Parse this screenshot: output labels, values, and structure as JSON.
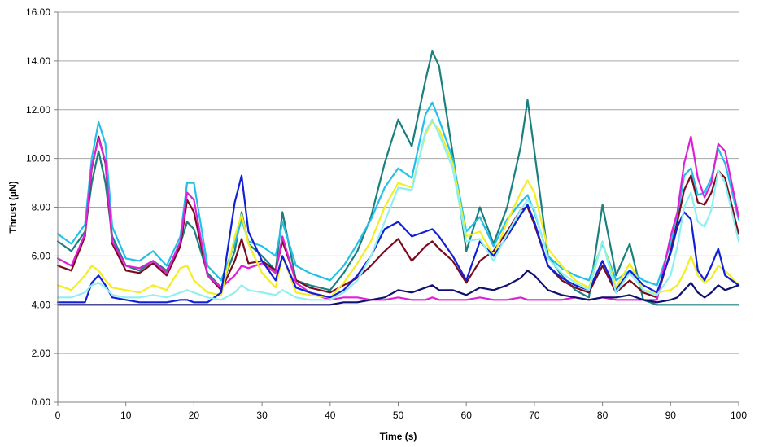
{
  "chart_data": {
    "type": "line",
    "title": "",
    "xlabel": "Time (s)",
    "ylabel": "Thrust (µN)",
    "xlim": [
      0,
      100
    ],
    "ylim": [
      0,
      16
    ],
    "x_ticks": [
      "0",
      "10",
      "20",
      "30",
      "40",
      "50",
      "60",
      "70",
      "80",
      "90",
      "100"
    ],
    "y_ticks": [
      "0.00",
      "2.00",
      "4.00",
      "6.00",
      "8.00",
      "10.00",
      "12.00",
      "14.00",
      "16.00"
    ],
    "grid": "horizontal",
    "x": [
      0,
      2,
      4,
      5,
      6,
      7,
      8,
      10,
      12,
      14,
      16,
      18,
      19,
      20,
      22,
      24,
      26,
      27,
      28,
      30,
      32,
      33,
      35,
      37,
      40,
      42,
      44,
      46,
      48,
      50,
      52,
      54,
      55,
      56,
      58,
      60,
      62,
      64,
      66,
      68,
      69,
      70,
      72,
      74,
      76,
      78,
      80,
      82,
      84,
      86,
      88,
      90,
      91,
      92,
      93,
      94,
      95,
      96,
      97,
      98,
      100
    ],
    "series": [
      {
        "name": "teal",
        "color": "#1a7f7f",
        "values": [
          6.6,
          6.2,
          7.0,
          9.0,
          10.3,
          9.0,
          6.8,
          5.6,
          5.4,
          5.8,
          5.4,
          6.5,
          7.4,
          7.1,
          5.3,
          4.7,
          6.2,
          7.8,
          6.5,
          6.0,
          5.4,
          7.8,
          5.0,
          4.8,
          4.6,
          5.3,
          6.2,
          7.6,
          9.8,
          11.6,
          10.5,
          13.2,
          14.4,
          13.8,
          10.2,
          6.2,
          8.0,
          6.5,
          8.0,
          10.5,
          12.4,
          10.3,
          6.0,
          5.2,
          4.6,
          4.3,
          8.1,
          5.2,
          6.5,
          4.2,
          4.0,
          4.0,
          4.0,
          4.0,
          4.0,
          4.0,
          4.0,
          4.0,
          4.0,
          4.0,
          4.0
        ]
      },
      {
        "name": "cyan",
        "color": "#22c0e8",
        "values": [
          6.9,
          6.5,
          7.3,
          10.0,
          11.5,
          10.6,
          7.2,
          5.9,
          5.8,
          6.2,
          5.6,
          6.8,
          9.0,
          9.0,
          5.6,
          5.0,
          6.5,
          7.5,
          6.6,
          6.4,
          6.0,
          7.4,
          5.6,
          5.3,
          5.0,
          5.6,
          6.5,
          7.5,
          8.8,
          9.6,
          9.2,
          11.8,
          12.3,
          11.6,
          10.0,
          7.0,
          7.6,
          6.4,
          7.5,
          8.2,
          8.5,
          7.8,
          6.0,
          5.5,
          5.2,
          5.0,
          6.5,
          5.0,
          5.4,
          5.0,
          4.8,
          6.5,
          7.6,
          9.3,
          9.6,
          8.5,
          8.6,
          9.2,
          10.4,
          9.8,
          7.5
        ]
      },
      {
        "name": "maroon",
        "color": "#7a0a1e",
        "values": [
          5.6,
          5.4,
          6.8,
          9.6,
          10.9,
          9.8,
          6.5,
          5.4,
          5.3,
          5.7,
          5.2,
          6.4,
          8.3,
          7.8,
          5.2,
          4.6,
          5.8,
          6.7,
          5.7,
          5.8,
          5.4,
          6.6,
          5.0,
          4.7,
          4.5,
          4.8,
          5.1,
          5.6,
          6.2,
          6.7,
          5.8,
          6.4,
          6.6,
          6.3,
          5.8,
          4.9,
          5.8,
          6.2,
          7.0,
          7.9,
          8.0,
          7.3,
          5.6,
          5.0,
          4.7,
          4.5,
          5.6,
          4.5,
          5.0,
          4.5,
          4.3,
          6.2,
          7.4,
          8.7,
          9.3,
          8.2,
          8.1,
          8.6,
          9.5,
          9.2,
          6.9
        ]
      },
      {
        "name": "magenta",
        "color": "#e020d8",
        "values": [
          5.9,
          5.6,
          6.9,
          9.7,
          10.8,
          9.9,
          6.6,
          5.6,
          5.5,
          5.8,
          5.3,
          6.6,
          8.6,
          8.3,
          5.2,
          4.7,
          5.2,
          5.6,
          5.5,
          5.7,
          5.3,
          6.8,
          4.9,
          4.5,
          4.2,
          4.3,
          4.3,
          4.2,
          4.2,
          4.3,
          4.2,
          4.2,
          4.3,
          4.2,
          4.2,
          4.2,
          4.3,
          4.2,
          4.2,
          4.3,
          4.2,
          4.2,
          4.2,
          4.2,
          4.3,
          4.2,
          4.3,
          4.2,
          4.2,
          4.2,
          4.2,
          6.8,
          7.8,
          9.8,
          10.9,
          9.2,
          8.4,
          9.0,
          10.6,
          10.3,
          7.6
        ]
      },
      {
        "name": "yellow",
        "color": "#f2ee22",
        "values": [
          4.8,
          4.6,
          5.2,
          5.6,
          5.4,
          5.0,
          4.7,
          4.6,
          4.5,
          4.8,
          4.6,
          5.5,
          5.6,
          5.0,
          4.5,
          4.4,
          6.8,
          7.7,
          6.5,
          5.3,
          4.7,
          6.0,
          4.5,
          4.4,
          4.3,
          4.9,
          5.7,
          6.6,
          8.0,
          9.0,
          8.8,
          11.0,
          11.5,
          11.2,
          9.8,
          6.8,
          7.0,
          6.0,
          7.4,
          8.6,
          9.1,
          8.6,
          6.3,
          5.6,
          5.0,
          4.7,
          6.6,
          4.7,
          5.7,
          4.6,
          4.5,
          4.6,
          4.8,
          5.3,
          6.0,
          5.2,
          4.9,
          5.1,
          5.6,
          5.4,
          4.8
        ]
      },
      {
        "name": "blue",
        "color": "#1020d8",
        "values": [
          4.1,
          4.1,
          4.1,
          4.9,
          5.2,
          4.8,
          4.3,
          4.2,
          4.1,
          4.1,
          4.1,
          4.2,
          4.2,
          4.1,
          4.1,
          4.5,
          8.2,
          9.3,
          7.0,
          5.8,
          5.0,
          6.0,
          4.7,
          4.5,
          4.3,
          4.6,
          5.2,
          6.0,
          7.1,
          7.4,
          6.8,
          7.0,
          7.1,
          6.8,
          6.0,
          5.0,
          6.6,
          6.0,
          6.8,
          7.7,
          8.1,
          7.4,
          5.6,
          5.1,
          4.8,
          4.6,
          5.8,
          4.6,
          5.4,
          4.8,
          4.5,
          6.1,
          7.2,
          7.8,
          7.5,
          5.4,
          5.0,
          5.6,
          6.3,
          5.2,
          4.8
        ]
      },
      {
        "name": "navy",
        "color": "#101070",
        "values": [
          4.0,
          4.0,
          4.0,
          4.0,
          4.0,
          4.0,
          4.0,
          4.0,
          4.0,
          4.0,
          4.0,
          4.0,
          4.0,
          4.0,
          4.0,
          4.0,
          4.0,
          4.0,
          4.0,
          4.0,
          4.0,
          4.0,
          4.0,
          4.0,
          4.0,
          4.1,
          4.1,
          4.2,
          4.3,
          4.6,
          4.5,
          4.7,
          4.8,
          4.6,
          4.6,
          4.4,
          4.7,
          4.6,
          4.8,
          5.1,
          5.4,
          5.2,
          4.6,
          4.4,
          4.3,
          4.2,
          4.3,
          4.3,
          4.4,
          4.2,
          4.1,
          4.2,
          4.3,
          4.6,
          4.9,
          4.5,
          4.3,
          4.5,
          4.8,
          4.6,
          4.8
        ]
      },
      {
        "name": "light-cyan",
        "color": "#8ef0f0",
        "values": [
          4.3,
          4.3,
          4.5,
          4.8,
          4.9,
          4.7,
          4.4,
          4.3,
          4.3,
          4.4,
          4.3,
          4.5,
          4.6,
          4.5,
          4.3,
          4.2,
          4.5,
          4.8,
          4.6,
          4.5,
          4.4,
          4.6,
          4.3,
          4.2,
          4.2,
          4.5,
          5.0,
          6.0,
          7.4,
          8.8,
          8.7,
          11.1,
          11.6,
          11.0,
          9.6,
          6.6,
          6.7,
          5.8,
          6.9,
          7.9,
          8.3,
          7.9,
          5.9,
          5.3,
          4.9,
          4.6,
          6.6,
          4.5,
          5.3,
          4.6,
          4.4,
          5.2,
          6.4,
          8.0,
          8.6,
          7.4,
          7.2,
          7.9,
          9.5,
          9.0,
          6.6
        ]
      }
    ]
  }
}
